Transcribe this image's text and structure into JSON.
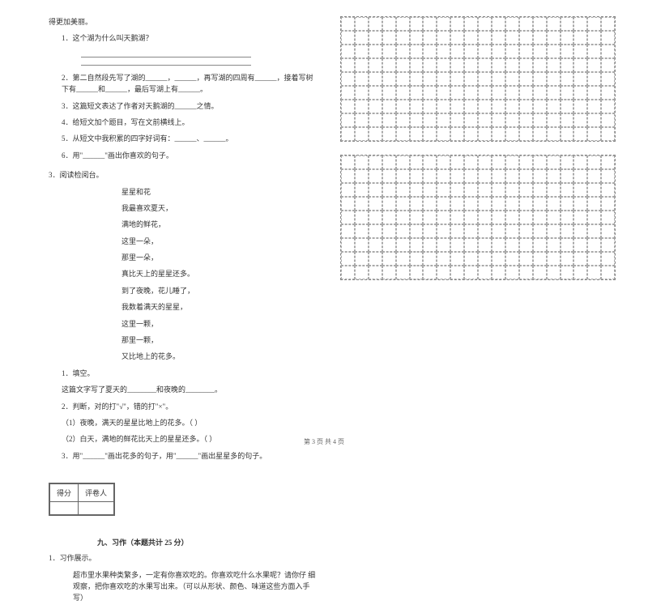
{
  "intro": "得更加美丽。",
  "q1": {
    "num": "1．",
    "text": "这个湖为什么叫天鹅湖？"
  },
  "q2": {
    "num": "2．",
    "text": "第二自然段先写了湖的______，______，再写湖的四周有______，接着写树下有______和______，最后写湖上有______。"
  },
  "q3": {
    "num": "3．",
    "text": "这篇短文表达了作者对天鹅湖的______之情。"
  },
  "q4": {
    "num": "4．",
    "text": "给短文加个题目，写在文前横线上。"
  },
  "q5": {
    "num": "5．",
    "text": "从短文中我积累的四字好词有：______、______。"
  },
  "q6": {
    "num": "6．",
    "text": "用\"______\"画出你喜欢的句子。"
  },
  "reading": {
    "num": "3．阅读检阅台。",
    "title": "星星和花",
    "lines": [
      "我最喜欢夏天，",
      "满地的鲜花，",
      "这里一朵，",
      "那里一朵，",
      "真比天上的星星还多。",
      "到了夜晚，花儿睡了，",
      "我数着满天的星星，",
      "这里一颗，",
      "那里一颗，",
      "又比地上的花多。"
    ]
  },
  "sub": {
    "s1": {
      "num": "1．",
      "label": "填空。",
      "text": "这篇文字写了夏天的________和夜晚的________。"
    },
    "s2": {
      "num": "2．",
      "label": "判断，对的打\"√\"，错的打\"×\"。",
      "item1": "（1）夜晚，满天的星星比地上的花多。（    ）",
      "item2": "（2）白天，满地的鲜花比天上的星星还多。（    ）"
    },
    "s3": {
      "num": "3．",
      "text": "用\"______\"画出花多的句子，用\"______\"画出星星多的句子。"
    }
  },
  "score": {
    "col1": "得分",
    "col2": "评卷人"
  },
  "section9": "九、习作（本题共计 25 分）",
  "writing": {
    "num": "1．",
    "label": "习作展示。",
    "text": "超市里水果种类繁多，一定有你喜欢吃的。你喜欢吃什么水果呢？请你仔 细观察，把你喜欢吃的水果写出来。（可以从形状、颜色、味道这些方面入手写）"
  },
  "footer": "第 3 页  共 4 页",
  "grid": {
    "cols": 20,
    "rows": 9
  }
}
